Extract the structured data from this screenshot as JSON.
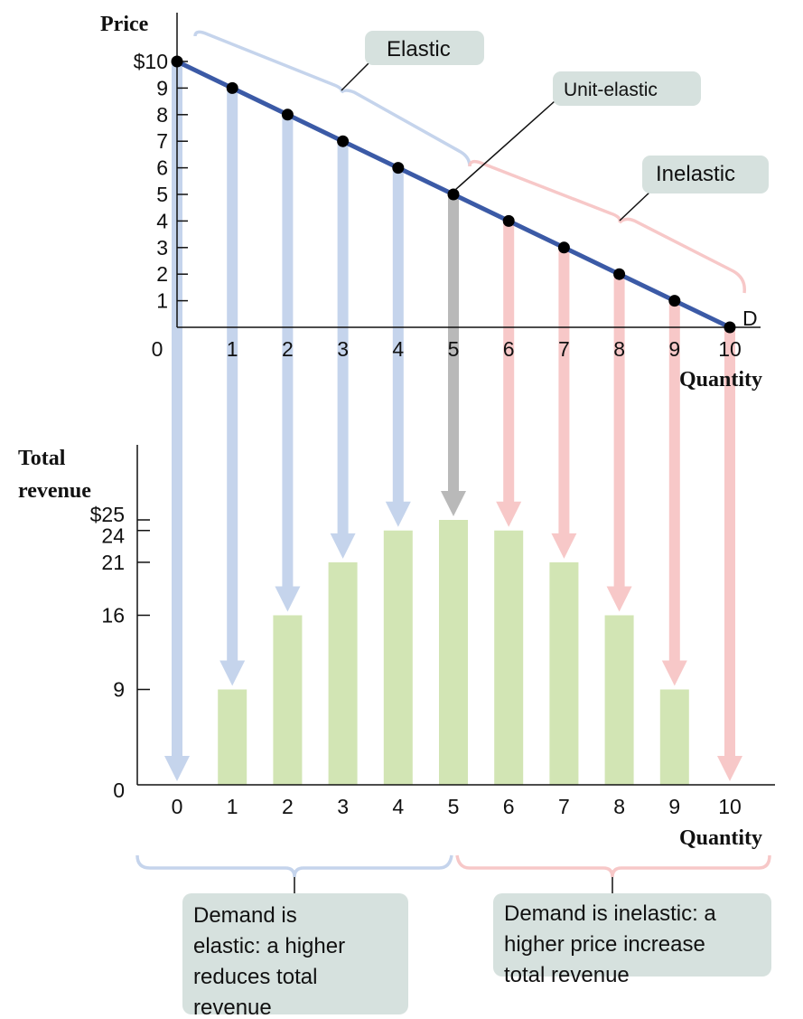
{
  "chart_data": [
    {
      "type": "line",
      "name": "demand-curve-panel",
      "ylabel": "Price",
      "xlabel": "Quantity",
      "curve_label": "D",
      "x": [
        0,
        1,
        2,
        3,
        4,
        5,
        6,
        7,
        8,
        9,
        10
      ],
      "y": [
        10,
        9,
        8,
        7,
        6,
        5,
        4,
        3,
        2,
        1,
        0
      ],
      "xlim": [
        0,
        10
      ],
      "ylim": [
        0,
        10
      ],
      "y_tick_labels": [
        "$10",
        "9",
        "8",
        "7",
        "6",
        "5",
        "4",
        "3",
        "2",
        "1"
      ],
      "x_tick_labels": [
        "0",
        "1",
        "2",
        "3",
        "4",
        "5",
        "6",
        "7",
        "8",
        "9",
        "10"
      ],
      "annotations": {
        "elastic": "Elastic",
        "unit_elastic": "Unit-elastic",
        "inelastic": "Inelastic"
      },
      "colors": {
        "line": "#3b5aa6",
        "point": "#000000",
        "elastic": "#c5d4ec",
        "unit": "#b9b9b9",
        "inelastic": "#f7c8c8"
      }
    },
    {
      "type": "bar",
      "name": "total-revenue-panel",
      "ylabel": "Total revenue",
      "xlabel": "Quantity",
      "categories": [
        "0",
        "1",
        "2",
        "3",
        "4",
        "5",
        "6",
        "7",
        "8",
        "9",
        "10"
      ],
      "values": [
        0,
        9,
        16,
        21,
        24,
        25,
        24,
        21,
        16,
        9,
        0
      ],
      "ylim": [
        0,
        25
      ],
      "y_tick_labels": [
        "$25",
        "24",
        "21",
        "16",
        "9",
        "0"
      ],
      "colors": {
        "bar": "#d2e5b4"
      }
    }
  ],
  "notes": {
    "elastic": [
      "Demand is",
      "elastic: a higher",
      "reduces total",
      "revenue"
    ],
    "inelastic": [
      "Demand is inelastic: a",
      "higher price increase",
      "total revenue"
    ]
  }
}
